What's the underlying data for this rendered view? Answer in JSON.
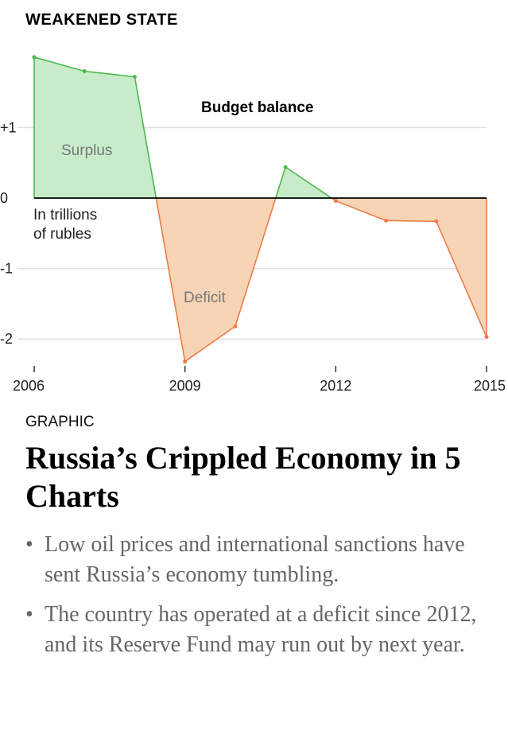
{
  "heading": "WEAKENED STATE",
  "chart_data": {
    "type": "area",
    "title": "Budget balance",
    "units_label_line1": "In trillions",
    "units_label_line2": "of rubles",
    "positive_label": "Surplus",
    "negative_label": "Deficit",
    "x": [
      2006,
      2007,
      2008,
      2009,
      2010,
      2011,
      2012,
      2013,
      2014,
      2015
    ],
    "values": [
      2.0,
      1.8,
      1.72,
      -2.32,
      -1.82,
      0.44,
      -0.04,
      -0.32,
      -0.33,
      -1.97
    ],
    "xlim": [
      2006,
      2015
    ],
    "ylim": [
      -2.4,
      2.1
    ],
    "x_ticks": [
      2006,
      2009,
      2012,
      2015
    ],
    "x_tick_labels": [
      "2006",
      "2009",
      "2012",
      "2015"
    ],
    "y_ticks": [
      1,
      0,
      -1,
      -2
    ],
    "y_tick_labels": [
      "+1",
      "0",
      "-1",
      "-2"
    ],
    "grid": true,
    "colors": {
      "surplus_fill": "#c8ecc9",
      "surplus_line": "#4cb84f",
      "deficit_fill": "#f7d4b6",
      "deficit_line": "#ec7c45",
      "zero_line": "#000000",
      "grid": "#e0e0e0"
    }
  },
  "section_label": "GRAPHIC",
  "headline": "Russia’s Crippled Economy in 5 Charts",
  "bullets": [
    "Low oil prices and international sanctions have sent Russia’s economy tumbling.",
    "The country has operated at a deficit since 2012, and its Reserve Fund may run out by next year."
  ]
}
